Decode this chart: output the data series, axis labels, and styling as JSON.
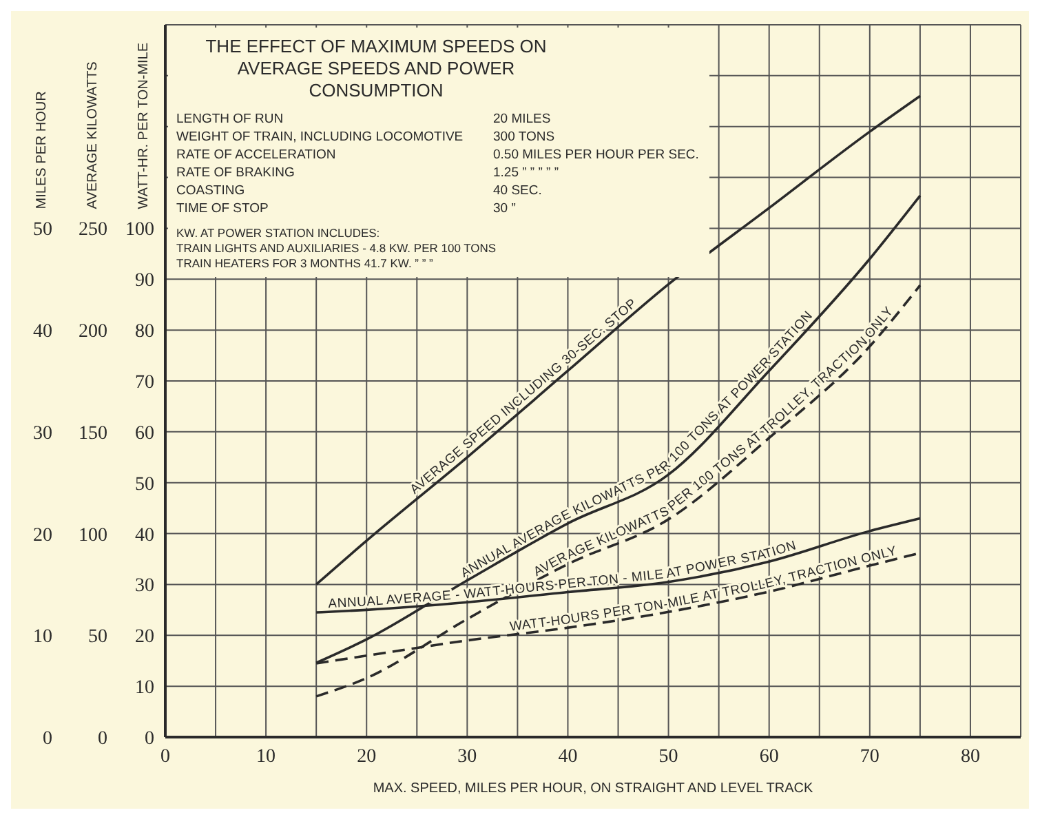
{
  "chart_data": {
    "type": "line",
    "title": "THE EFFECT OF MAXIMUM SPEEDS ON AVERAGE SPEEDS AND POWER CONSUMPTION",
    "xlabel": "MAX. SPEED, MILES PER HOUR, ON STRAIGHT AND LEVEL TRACK",
    "ylabel": "MILES PER HOUR",
    "y2label": "AVERAGE KILOWATTS",
    "y3label": "WATT-HR. PER TON-MILE",
    "x": [
      15,
      20,
      30,
      40,
      50,
      60,
      70,
      75
    ],
    "xlim": [
      0,
      85
    ],
    "xticks": [
      0,
      {
        "value": 5,
        "label": null
      },
      10,
      {
        "value": 15,
        "label": null
      },
      20,
      {
        "value": 25,
        "label": null
      },
      30,
      {
        "value": 35,
        "label": null
      },
      40,
      {
        "value": 45,
        "label": null
      },
      50,
      {
        "value": 55,
        "label": null
      },
      60,
      {
        "value": 65,
        "label": null
      },
      70,
      {
        "value": 75,
        "label": null
      },
      80,
      {
        "value": 85,
        "label": null
      }
    ],
    "ylim": [
      0,
      70
    ],
    "yticks": [
      0,
      10,
      20,
      30,
      40,
      50
    ],
    "y2lim": [
      0,
      350
    ],
    "y2ticks": [
      0,
      50,
      100,
      150,
      200,
      250
    ],
    "y3lim": [
      0,
      140
    ],
    "y3ticks": [
      0,
      10,
      20,
      30,
      40,
      50,
      60,
      70,
      80,
      90,
      100,
      {
        "value": 110,
        "label": null
      },
      {
        "value": 120,
        "label": null
      },
      {
        "value": 130,
        "label": null
      },
      {
        "value": 140,
        "label": null
      }
    ],
    "grid": true,
    "series": [
      {
        "name": "AVERAGE SPEED INCLUDING 30-SEC. STOP",
        "color": "#2a2a2a",
        "axis": "y",
        "line_style": "solid",
        "values": [
          15,
          19.3,
          27.5,
          36,
          44.5,
          52,
          59.5,
          63
        ]
      },
      {
        "name": "ANNUAL AVERAGE KILOWATTS PER 100 TONS AT POWER STATION",
        "color": "#2a2a2a",
        "axis": "y2",
        "line_style": "solid",
        "values": [
          36.5,
          48,
          77,
          105,
          129,
          180,
          235,
          266
        ]
      },
      {
        "name": "AVERAGE KILOWATTS PER 100 TONS AT TROLLEY, TRACTION ONLY",
        "color": "#2a2a2a",
        "axis": "y2",
        "line_style": "dashed",
        "values": [
          20,
          29,
          58,
          85,
          107,
          147,
          192,
          222
        ]
      },
      {
        "name": "ANNUAL AVERAGE - WATT-HOURS PER TON - MILE AT POWER STATION",
        "color": "#2a2a2a",
        "axis": "y3",
        "line_style": "solid",
        "values": [
          24.5,
          25,
          26.5,
          28.5,
          30.5,
          34.5,
          40.5,
          43
        ]
      },
      {
        "name": "WATT-HOURS PER TON-MILE AT TROLLEY, TRACTION ONLY",
        "color": "#2a2a2a",
        "axis": "y3",
        "line_style": "dashed",
        "values": [
          14.5,
          16,
          19,
          21.5,
          24.6,
          28.6,
          33.7,
          36.2
        ]
      }
    ],
    "annotations": [
      "LENGTH OF RUN",
      "20 MILES",
      "WEIGHT OF TRAIN, INCLUDING LOCOMOTIVE",
      "300 TONS",
      "RATE OF ACCELERATION",
      "0.50 MILES PER HOUR PER SEC.",
      "RATE OF BRAKING",
      "1.25  ”  ”  ”  ”  ”",
      "COASTING",
      "40 SEC.",
      "TIME OF STOP",
      "30  ”",
      "KW. AT POWER STATION INCLUDES:",
      "TRAIN LIGHTS AND AUXILIARIES - 4.8 KW. PER 100 TONS",
      "TRAIN HEATERS FOR 3 MONTHS 41.7 KW.  ”  ”  ”"
    ]
  }
}
